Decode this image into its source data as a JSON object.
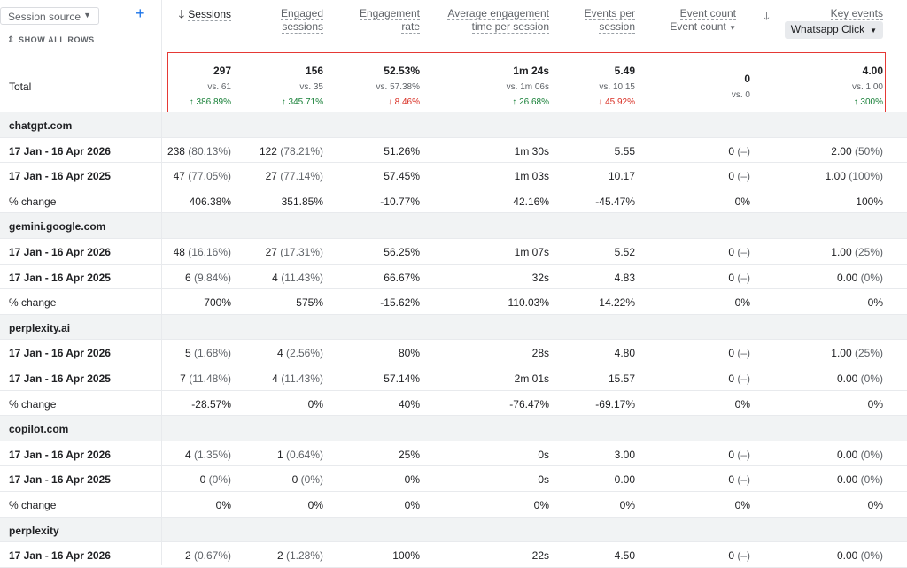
{
  "header": {
    "dimension_selector": "Session source",
    "add_icon": "plus-icon",
    "show_all_rows": "SHOW ALL ROWS",
    "columns": {
      "sessions": "Sessions",
      "engaged_l1": "Engaged",
      "engaged_l2": "sessions",
      "rate_l1": "Engagement",
      "rate_l2": "rate",
      "avg_l1": "Average engagement",
      "avg_l2": "time per session",
      "eps_l1": "Events per",
      "eps_l2": "session",
      "event_count": "Event count",
      "event_count_select": "Event count",
      "key_events": "Key events",
      "key_events_chip": "Whatsapp Click"
    }
  },
  "total": {
    "label": "Total",
    "cols": [
      {
        "value": "297",
        "vs": "vs. 61",
        "change": "↑ 386.89%",
        "dir": "up"
      },
      {
        "value": "156",
        "vs": "vs. 35",
        "change": "↑ 345.71%",
        "dir": "up"
      },
      {
        "value": "52.53%",
        "vs": "vs. 57.38%",
        "change": "↓ 8.46%",
        "dir": "down"
      },
      {
        "value": "1m 24s",
        "vs": "vs. 1m 06s",
        "change": "↑ 26.68%",
        "dir": "up"
      },
      {
        "value": "5.49",
        "vs": "vs. 10.15",
        "change": "↓ 45.92%",
        "dir": "down"
      },
      {
        "value": "0",
        "vs": "vs. 0",
        "change": "",
        "dir": ""
      },
      {
        "value": "4.00",
        "vs": "vs. 1.00",
        "change": "↑ 300%",
        "dir": "up"
      }
    ]
  },
  "rows": [
    {
      "type": "group",
      "label": "chatgpt.com"
    },
    {
      "type": "data",
      "label": "17 Jan - 16 Apr 2026",
      "cells": [
        [
          "238",
          "(80.13%)"
        ],
        [
          "122",
          "(78.21%)"
        ],
        [
          "51.26%",
          ""
        ],
        [
          "1m 30s",
          ""
        ],
        [
          "5.55",
          ""
        ],
        [
          "0",
          "(–)"
        ],
        [
          "2.00",
          "(50%)"
        ]
      ]
    },
    {
      "type": "data",
      "label": "17 Jan - 16 Apr 2025",
      "cells": [
        [
          "47",
          "(77.05%)"
        ],
        [
          "27",
          "(77.14%)"
        ],
        [
          "57.45%",
          ""
        ],
        [
          "1m 03s",
          ""
        ],
        [
          "10.17",
          ""
        ],
        [
          "0",
          "(–)"
        ],
        [
          "1.00",
          "(100%)"
        ]
      ]
    },
    {
      "type": "change",
      "label": "% change",
      "cells": [
        [
          "406.38%",
          ""
        ],
        [
          "351.85%",
          ""
        ],
        [
          "-10.77%",
          ""
        ],
        [
          "42.16%",
          ""
        ],
        [
          "-45.47%",
          ""
        ],
        [
          "0%",
          ""
        ],
        [
          "100%",
          ""
        ]
      ]
    },
    {
      "type": "group",
      "label": "gemini.google.com"
    },
    {
      "type": "data",
      "label": "17 Jan - 16 Apr 2026",
      "cells": [
        [
          "48",
          "(16.16%)"
        ],
        [
          "27",
          "(17.31%)"
        ],
        [
          "56.25%",
          ""
        ],
        [
          "1m 07s",
          ""
        ],
        [
          "5.52",
          ""
        ],
        [
          "0",
          "(–)"
        ],
        [
          "1.00",
          "(25%)"
        ]
      ]
    },
    {
      "type": "data",
      "label": "17 Jan - 16 Apr 2025",
      "cells": [
        [
          "6",
          "(9.84%)"
        ],
        [
          "4",
          "(11.43%)"
        ],
        [
          "66.67%",
          ""
        ],
        [
          "32s",
          ""
        ],
        [
          "4.83",
          ""
        ],
        [
          "0",
          "(–)"
        ],
        [
          "0.00",
          "(0%)"
        ]
      ]
    },
    {
      "type": "change",
      "label": "% change",
      "cells": [
        [
          "700%",
          ""
        ],
        [
          "575%",
          ""
        ],
        [
          "-15.62%",
          ""
        ],
        [
          "110.03%",
          ""
        ],
        [
          "14.22%",
          ""
        ],
        [
          "0%",
          ""
        ],
        [
          "0%",
          ""
        ]
      ]
    },
    {
      "type": "group",
      "label": "perplexity.ai"
    },
    {
      "type": "data",
      "label": "17 Jan - 16 Apr 2026",
      "cells": [
        [
          "5",
          "(1.68%)"
        ],
        [
          "4",
          "(2.56%)"
        ],
        [
          "80%",
          ""
        ],
        [
          "28s",
          ""
        ],
        [
          "4.80",
          ""
        ],
        [
          "0",
          "(–)"
        ],
        [
          "1.00",
          "(25%)"
        ]
      ]
    },
    {
      "type": "data",
      "label": "17 Jan - 16 Apr 2025",
      "cells": [
        [
          "7",
          "(11.48%)"
        ],
        [
          "4",
          "(11.43%)"
        ],
        [
          "57.14%",
          ""
        ],
        [
          "2m 01s",
          ""
        ],
        [
          "15.57",
          ""
        ],
        [
          "0",
          "(–)"
        ],
        [
          "0.00",
          "(0%)"
        ]
      ]
    },
    {
      "type": "change",
      "label": "% change",
      "cells": [
        [
          "-28.57%",
          ""
        ],
        [
          "0%",
          ""
        ],
        [
          "40%",
          ""
        ],
        [
          "-76.47%",
          ""
        ],
        [
          "-69.17%",
          ""
        ],
        [
          "0%",
          ""
        ],
        [
          "0%",
          ""
        ]
      ]
    },
    {
      "type": "group",
      "label": "copilot.com"
    },
    {
      "type": "data",
      "label": "17 Jan - 16 Apr 2026",
      "cells": [
        [
          "4",
          "(1.35%)"
        ],
        [
          "1",
          "(0.64%)"
        ],
        [
          "25%",
          ""
        ],
        [
          "0s",
          ""
        ],
        [
          "3.00",
          ""
        ],
        [
          "0",
          "(–)"
        ],
        [
          "0.00",
          "(0%)"
        ]
      ]
    },
    {
      "type": "data",
      "label": "17 Jan - 16 Apr 2025",
      "cells": [
        [
          "0",
          "(0%)"
        ],
        [
          "0",
          "(0%)"
        ],
        [
          "0%",
          ""
        ],
        [
          "0s",
          ""
        ],
        [
          "0.00",
          ""
        ],
        [
          "0",
          "(–)"
        ],
        [
          "0.00",
          "(0%)"
        ]
      ]
    },
    {
      "type": "change",
      "label": "% change",
      "cells": [
        [
          "0%",
          ""
        ],
        [
          "0%",
          ""
        ],
        [
          "0%",
          ""
        ],
        [
          "0%",
          ""
        ],
        [
          "0%",
          ""
        ],
        [
          "0%",
          ""
        ],
        [
          "0%",
          ""
        ]
      ]
    },
    {
      "type": "group",
      "label": "perplexity"
    },
    {
      "type": "data",
      "label": "17 Jan - 16 Apr 2026",
      "cells": [
        [
          "2",
          "(0.67%)"
        ],
        [
          "2",
          "(1.28%)"
        ],
        [
          "100%",
          ""
        ],
        [
          "22s",
          ""
        ],
        [
          "4.50",
          ""
        ],
        [
          "0",
          "(–)"
        ],
        [
          "0.00",
          "(0%)"
        ]
      ]
    }
  ],
  "colors": {
    "up": "#188038",
    "down": "#d93025",
    "highlight": "#e53935",
    "accent": "#1a73e8"
  }
}
